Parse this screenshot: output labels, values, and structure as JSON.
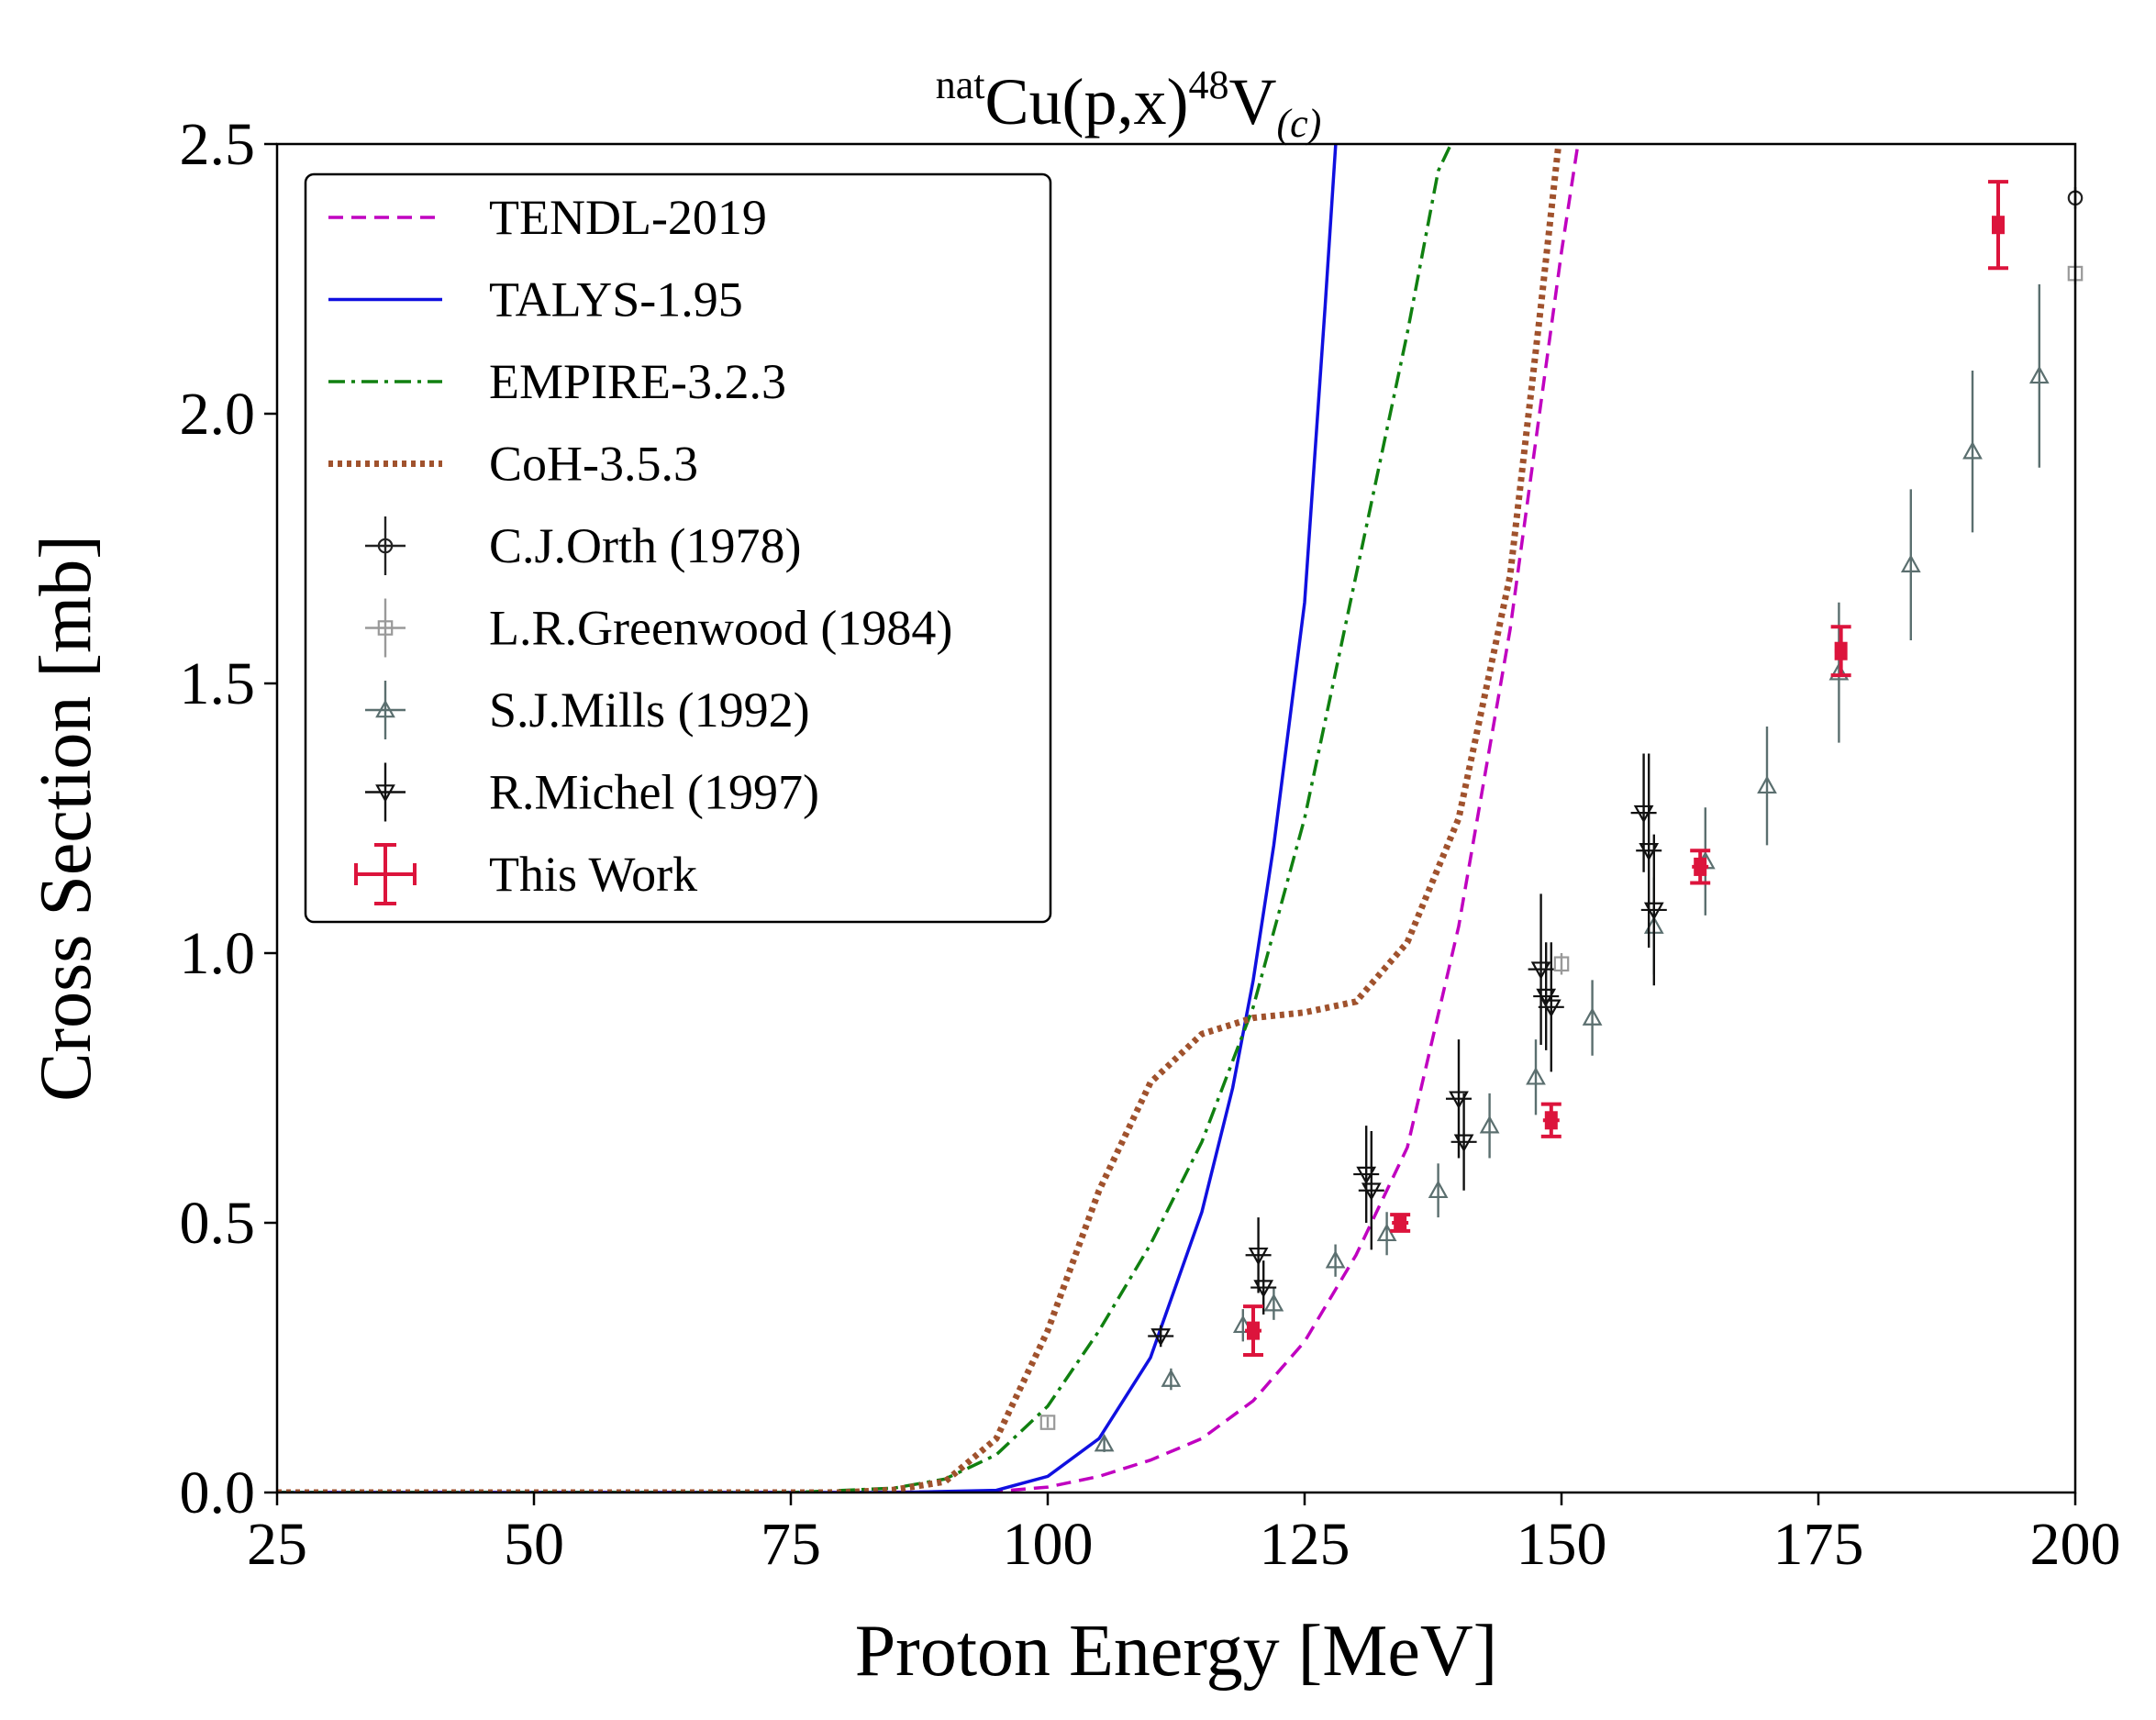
{
  "chart_data": {
    "type": "scatter",
    "title_prefix": "nat",
    "title_main": "Cu(p,x)",
    "title_mass": "48",
    "title_elem": "V",
    "title_sub": "(c)",
    "xlabel": "Proton Energy [MeV]",
    "ylabel": "Cross Section [mb]",
    "xlim": [
      25,
      200
    ],
    "ylim": [
      0,
      2.5
    ],
    "xticks": [
      25,
      50,
      75,
      100,
      125,
      150,
      175,
      200
    ],
    "yticks": [
      0.0,
      0.5,
      1.0,
      1.5,
      2.0,
      2.5
    ],
    "xtick_labels": [
      "25",
      "50",
      "75",
      "100",
      "125",
      "150",
      "175",
      "200"
    ],
    "ytick_labels": [
      "0.0",
      "0.5",
      "1.0",
      "1.5",
      "2.0",
      "2.5"
    ],
    "legend_position": "top-left",
    "curves": [
      {
        "name": "TENDL-2019",
        "color": "#c000c0",
        "style": "dashed",
        "x": [
          25,
          80,
          95,
          100,
          105,
          110,
          115,
          120,
          125,
          130,
          135,
          140,
          145,
          150,
          152
        ],
        "y": [
          0,
          0,
          0.002,
          0.01,
          0.03,
          0.06,
          0.1,
          0.17,
          0.28,
          0.44,
          0.64,
          1.05,
          1.6,
          2.3,
          2.55
        ]
      },
      {
        "name": "TALYS-1.95",
        "color": "#1010e0",
        "style": "solid",
        "x": [
          25,
          85,
          95,
          100,
          105,
          110,
          115,
          118,
          120,
          122,
          125,
          127,
          128.2
        ],
        "y": [
          0,
          0,
          0.004,
          0.03,
          0.1,
          0.25,
          0.52,
          0.75,
          0.95,
          1.2,
          1.65,
          2.2,
          2.55
        ]
      },
      {
        "name": "EMPIRE-3.2.3",
        "color": "#108010",
        "style": "dashdot",
        "x": [
          25,
          75,
          85,
          90,
          95,
          100,
          105,
          110,
          115,
          120,
          125,
          130,
          135,
          138,
          140.5
        ],
        "y": [
          0,
          0,
          0.008,
          0.025,
          0.07,
          0.16,
          0.3,
          0.46,
          0.65,
          0.9,
          1.25,
          1.7,
          2.15,
          2.45,
          2.55
        ]
      },
      {
        "name": "CoH-3.5.3",
        "color": "#a0522d",
        "style": "dotted",
        "x": [
          25,
          80,
          85,
          90,
          95,
          100,
          105,
          110,
          115,
          120,
          125,
          130,
          135,
          140,
          145,
          148,
          150
        ],
        "y": [
          0,
          0,
          0.005,
          0.02,
          0.1,
          0.3,
          0.56,
          0.76,
          0.85,
          0.88,
          0.89,
          0.91,
          1.02,
          1.25,
          1.7,
          2.2,
          2.55
        ]
      }
    ],
    "series": [
      {
        "name": "C.J.Orth (1978)",
        "marker": "circle",
        "color": "#222222",
        "x": [
          200
        ],
        "y": [
          2.4
        ],
        "err": [
          0.02
        ]
      },
      {
        "name": "L.R.Greenwood (1984)",
        "marker": "square",
        "color": "#999999",
        "x": [
          100,
          150,
          200
        ],
        "y": [
          0.13,
          0.98,
          2.26
        ],
        "err": [
          0.01,
          0.02,
          0.02
        ]
      },
      {
        "name": "S.J.Mills (1992)",
        "marker": "triangle-up",
        "color": "#5b6f6f",
        "x": [
          105.5,
          112,
          119,
          122,
          128,
          133,
          138,
          143,
          147.5,
          153,
          159,
          164,
          170,
          177,
          184,
          190,
          196.5
        ],
        "y": [
          0.09,
          0.21,
          0.31,
          0.35,
          0.43,
          0.48,
          0.56,
          0.68,
          0.77,
          0.88,
          1.05,
          1.17,
          1.31,
          1.52,
          1.72,
          1.93,
          2.07
        ],
        "err": [
          0.015,
          0.02,
          0.03,
          0.03,
          0.03,
          0.04,
          0.05,
          0.06,
          0.07,
          0.07,
          0.09,
          0.1,
          0.11,
          0.13,
          0.14,
          0.15,
          0.17
        ]
      },
      {
        "name": "R.Michel (1997)",
        "marker": "triangle-down",
        "color": "#111111",
        "x": [
          111,
          120.5,
          121,
          131,
          131.5,
          140,
          140.5,
          148,
          148.5,
          149,
          158,
          158.5,
          159
        ],
        "y": [
          0.29,
          0.44,
          0.38,
          0.59,
          0.56,
          0.73,
          0.65,
          0.97,
          0.92,
          0.9,
          1.26,
          1.19,
          1.08
        ],
        "err": [
          0.02,
          0.07,
          0.05,
          0.09,
          0.11,
          0.11,
          0.09,
          0.14,
          0.1,
          0.12,
          0.11,
          0.18,
          0.14
        ]
      },
      {
        "name": "This Work",
        "marker": "errorbar",
        "color": "#dc143c",
        "x": [
          120,
          134.3,
          149,
          163.5,
          177.2,
          192.5
        ],
        "y": [
          0.3,
          0.5,
          0.69,
          1.16,
          1.56,
          2.35
        ],
        "err": [
          0.045,
          0.015,
          0.03,
          0.03,
          0.045,
          0.08
        ],
        "xerr": [
          0.8,
          0.8,
          0.8,
          0.8,
          0.6,
          0.6
        ]
      }
    ]
  }
}
